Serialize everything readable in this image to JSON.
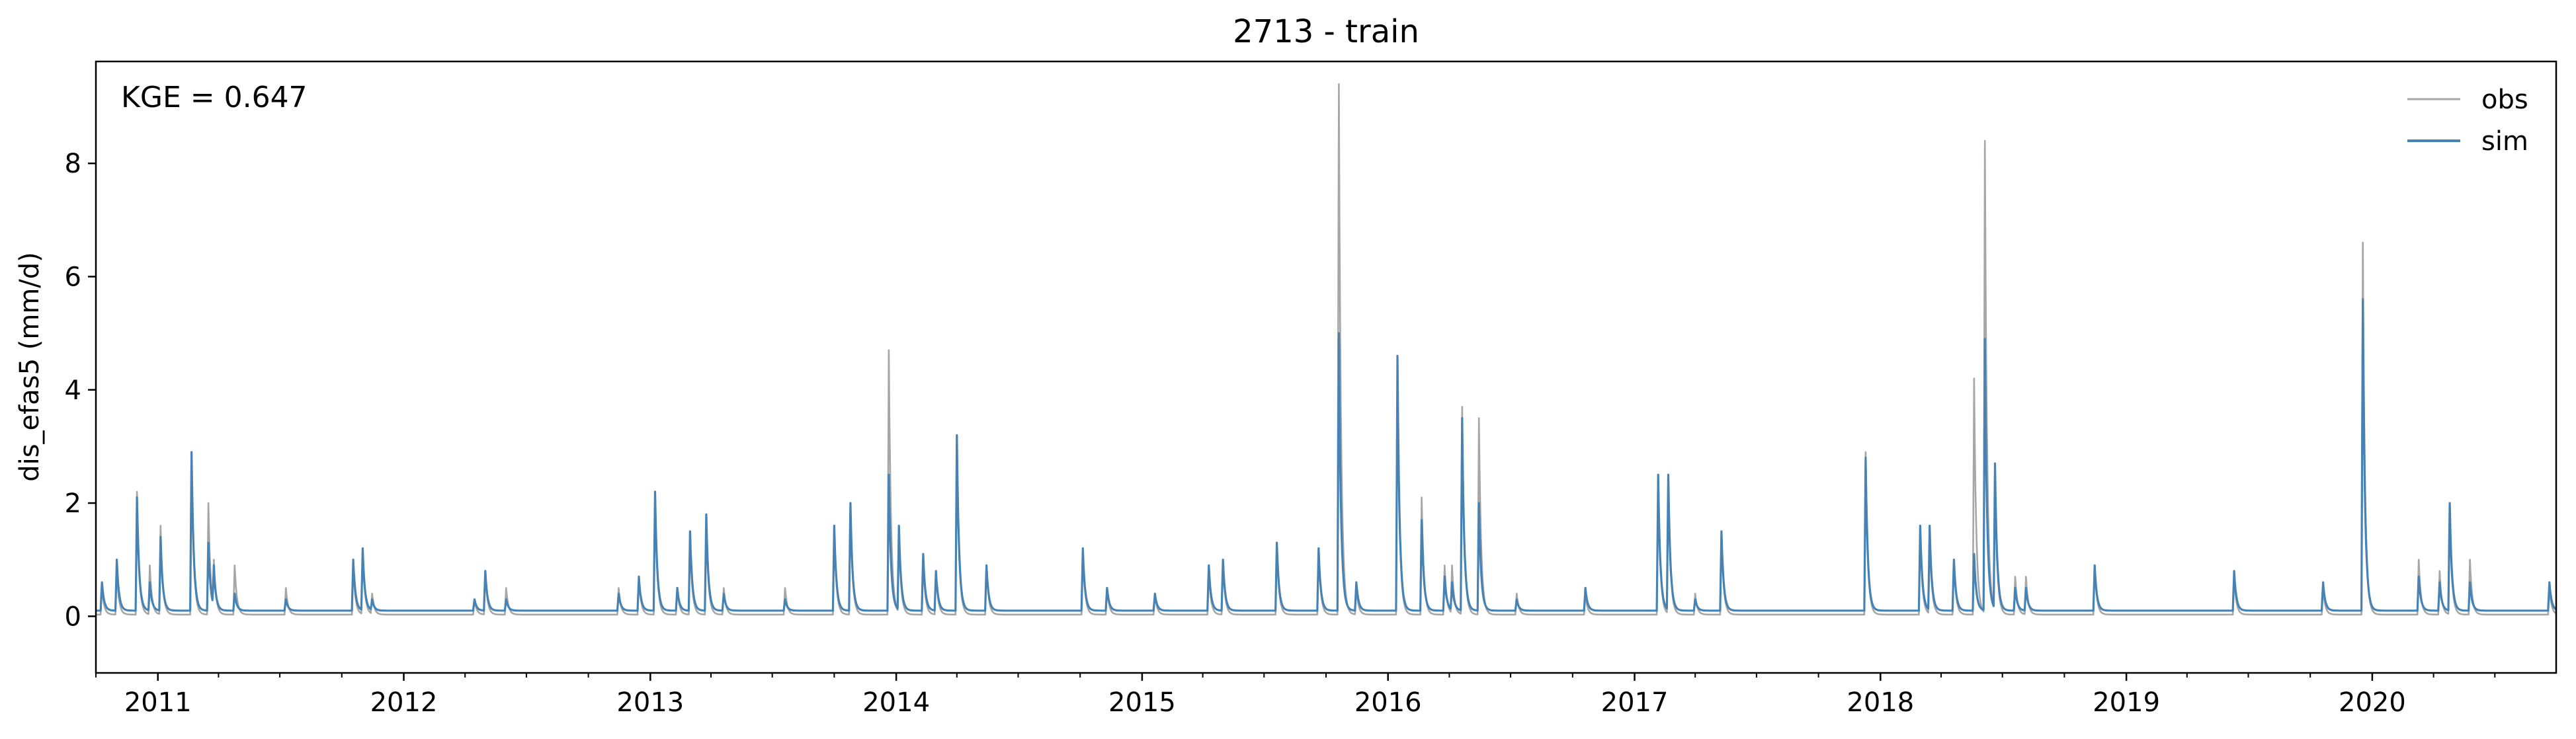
{
  "chart_data": {
    "type": "line",
    "title": "2713 - train",
    "xlabel": "",
    "ylabel": "dis_efas5 (mm/d)",
    "annotation": "KGE = 0.647",
    "xlim": [
      "2010-10-01",
      "2020-09-30"
    ],
    "ylim": [
      -1.0,
      9.8
    ],
    "yticks": [
      0,
      2,
      4,
      6,
      8
    ],
    "xticks": [
      {
        "date": "2011-01-01",
        "label": "2011"
      },
      {
        "date": "2012-01-01",
        "label": "2012"
      },
      {
        "date": "2013-01-01",
        "label": "2013"
      },
      {
        "date": "2014-01-01",
        "label": "2014"
      },
      {
        "date": "2015-01-01",
        "label": "2015"
      },
      {
        "date": "2016-01-01",
        "label": "2016"
      },
      {
        "date": "2017-01-01",
        "label": "2017"
      },
      {
        "date": "2018-01-01",
        "label": "2018"
      },
      {
        "date": "2019-01-01",
        "label": "2019"
      },
      {
        "date": "2020-01-01",
        "label": "2020"
      }
    ],
    "grid": false,
    "legend_position": "top-right",
    "baseline": {
      "obs": 0.03,
      "sim": 0.1
    },
    "series": [
      {
        "name": "obs",
        "color": "#a6a6a6",
        "peaks": [
          [
            "2010-10-10",
            0.5
          ],
          [
            "2010-11-01",
            0.8
          ],
          [
            "2010-12-01",
            2.2
          ],
          [
            "2010-12-20",
            0.9
          ],
          [
            "2011-01-05",
            1.6
          ],
          [
            "2011-02-20",
            2.8
          ],
          [
            "2011-03-17",
            2.0
          ],
          [
            "2011-03-25",
            1.0
          ],
          [
            "2011-04-25",
            0.9
          ],
          [
            "2011-07-10",
            0.5
          ],
          [
            "2011-10-18",
            0.9
          ],
          [
            "2011-11-01",
            1.2
          ],
          [
            "2011-11-15",
            0.4
          ],
          [
            "2012-04-15",
            0.3
          ],
          [
            "2012-05-01",
            0.8
          ],
          [
            "2012-06-01",
            0.5
          ],
          [
            "2012-11-15",
            0.5
          ],
          [
            "2012-12-15",
            0.7
          ],
          [
            "2013-01-08",
            2.2
          ],
          [
            "2013-02-10",
            0.5
          ],
          [
            "2013-03-01",
            1.4
          ],
          [
            "2013-03-25",
            1.7
          ],
          [
            "2013-04-20",
            0.5
          ],
          [
            "2013-07-20",
            0.5
          ],
          [
            "2013-10-01",
            1.6
          ],
          [
            "2013-10-25",
            2.0
          ],
          [
            "2013-12-21",
            4.7
          ],
          [
            "2014-01-05",
            1.5
          ],
          [
            "2014-02-10",
            1.0
          ],
          [
            "2014-03-01",
            0.8
          ],
          [
            "2014-04-01",
            3.2
          ],
          [
            "2014-05-15",
            0.9
          ],
          [
            "2014-10-05",
            1.2
          ],
          [
            "2014-11-10",
            0.5
          ],
          [
            "2015-01-20",
            0.4
          ],
          [
            "2015-04-10",
            0.8
          ],
          [
            "2015-05-01",
            1.0
          ],
          [
            "2015-07-20",
            1.3
          ],
          [
            "2015-09-20",
            1.2
          ],
          [
            "2015-10-20",
            9.4
          ],
          [
            "2015-11-15",
            0.5
          ],
          [
            "2016-01-15",
            4.5
          ],
          [
            "2016-02-20",
            2.1
          ],
          [
            "2016-03-25",
            0.9
          ],
          [
            "2016-04-05",
            0.9
          ],
          [
            "2016-04-20",
            3.7
          ],
          [
            "2016-05-15",
            3.5
          ],
          [
            "2016-07-10",
            0.4
          ],
          [
            "2016-10-20",
            0.4
          ],
          [
            "2017-02-05",
            2.5
          ],
          [
            "2017-02-20",
            2.5
          ],
          [
            "2017-04-01",
            0.4
          ],
          [
            "2017-05-10",
            1.5
          ],
          [
            "2017-12-10",
            2.9
          ],
          [
            "2018-03-01",
            1.5
          ],
          [
            "2018-03-15",
            1.5
          ],
          [
            "2018-04-20",
            1.0
          ],
          [
            "2018-05-20",
            4.2
          ],
          [
            "2018-06-05",
            8.4
          ],
          [
            "2018-06-20",
            2.6
          ],
          [
            "2018-07-20",
            0.7
          ],
          [
            "2018-08-05",
            0.7
          ],
          [
            "2018-11-15",
            0.9
          ],
          [
            "2019-06-10",
            0.7
          ],
          [
            "2019-10-20",
            0.5
          ],
          [
            "2019-12-18",
            6.6
          ],
          [
            "2020-03-10",
            1.0
          ],
          [
            "2020-04-10",
            0.8
          ],
          [
            "2020-04-25",
            1.9
          ],
          [
            "2020-05-25",
            1.0
          ],
          [
            "2020-09-20",
            0.5
          ]
        ]
      },
      {
        "name": "sim",
        "color": "#4682b4",
        "peaks": [
          [
            "2010-10-10",
            0.6
          ],
          [
            "2010-11-01",
            1.0
          ],
          [
            "2010-12-01",
            2.1
          ],
          [
            "2010-12-20",
            0.6
          ],
          [
            "2011-01-05",
            1.4
          ],
          [
            "2011-02-20",
            2.9
          ],
          [
            "2011-03-17",
            1.3
          ],
          [
            "2011-03-25",
            0.9
          ],
          [
            "2011-04-25",
            0.4
          ],
          [
            "2011-07-10",
            0.3
          ],
          [
            "2011-10-18",
            1.0
          ],
          [
            "2011-11-01",
            1.2
          ],
          [
            "2011-11-15",
            0.3
          ],
          [
            "2012-04-15",
            0.3
          ],
          [
            "2012-05-01",
            0.8
          ],
          [
            "2012-06-01",
            0.3
          ],
          [
            "2012-11-15",
            0.4
          ],
          [
            "2012-12-15",
            0.7
          ],
          [
            "2013-01-08",
            2.2
          ],
          [
            "2013-02-10",
            0.5
          ],
          [
            "2013-03-01",
            1.5
          ],
          [
            "2013-03-25",
            1.8
          ],
          [
            "2013-04-20",
            0.4
          ],
          [
            "2013-07-20",
            0.3
          ],
          [
            "2013-10-01",
            1.6
          ],
          [
            "2013-10-25",
            2.0
          ],
          [
            "2013-12-21",
            2.5
          ],
          [
            "2014-01-05",
            1.6
          ],
          [
            "2014-02-10",
            1.1
          ],
          [
            "2014-03-01",
            0.8
          ],
          [
            "2014-04-01",
            3.2
          ],
          [
            "2014-05-15",
            0.9
          ],
          [
            "2014-10-05",
            1.2
          ],
          [
            "2014-11-10",
            0.5
          ],
          [
            "2015-01-20",
            0.4
          ],
          [
            "2015-04-10",
            0.9
          ],
          [
            "2015-05-01",
            1.0
          ],
          [
            "2015-07-20",
            1.3
          ],
          [
            "2015-09-20",
            1.2
          ],
          [
            "2015-10-20",
            5.0
          ],
          [
            "2015-11-15",
            0.6
          ],
          [
            "2016-01-15",
            4.6
          ],
          [
            "2016-02-20",
            1.7
          ],
          [
            "2016-03-25",
            0.7
          ],
          [
            "2016-04-05",
            0.6
          ],
          [
            "2016-04-20",
            3.5
          ],
          [
            "2016-05-15",
            2.0
          ],
          [
            "2016-07-10",
            0.3
          ],
          [
            "2016-10-20",
            0.5
          ],
          [
            "2017-02-05",
            2.5
          ],
          [
            "2017-02-20",
            2.5
          ],
          [
            "2017-04-01",
            0.3
          ],
          [
            "2017-05-10",
            1.5
          ],
          [
            "2017-12-10",
            2.8
          ],
          [
            "2018-03-01",
            1.6
          ],
          [
            "2018-03-15",
            1.6
          ],
          [
            "2018-04-20",
            1.0
          ],
          [
            "2018-05-20",
            1.1
          ],
          [
            "2018-06-05",
            4.9
          ],
          [
            "2018-06-20",
            2.7
          ],
          [
            "2018-07-20",
            0.5
          ],
          [
            "2018-08-05",
            0.5
          ],
          [
            "2018-11-15",
            0.9
          ],
          [
            "2019-06-10",
            0.8
          ],
          [
            "2019-10-20",
            0.6
          ],
          [
            "2019-12-18",
            5.6
          ],
          [
            "2020-03-10",
            0.7
          ],
          [
            "2020-04-10",
            0.6
          ],
          [
            "2020-04-25",
            2.0
          ],
          [
            "2020-05-25",
            0.6
          ],
          [
            "2020-09-20",
            0.6
          ]
        ]
      }
    ]
  }
}
